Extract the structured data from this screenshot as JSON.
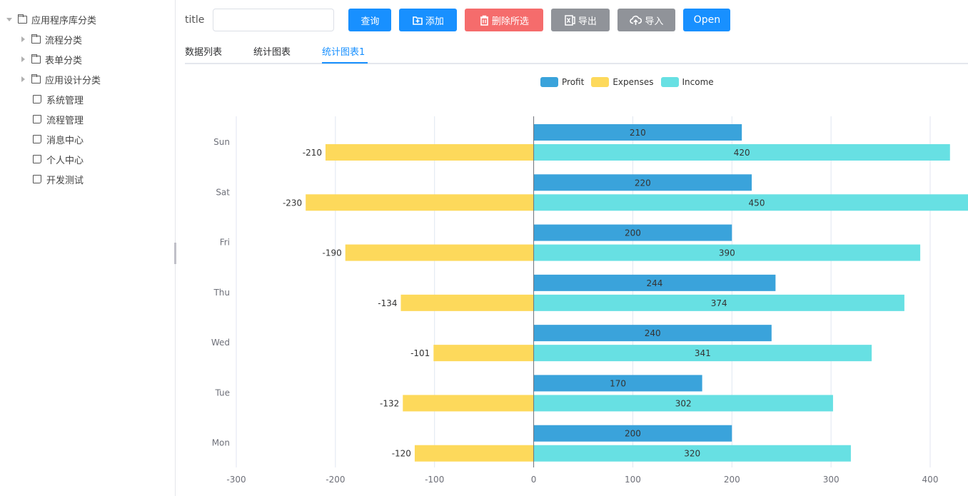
{
  "sidebar": {
    "items": [
      {
        "label": "应用程序库分类",
        "type": "folder",
        "expanded": true,
        "level": 0
      },
      {
        "label": "流程分类",
        "type": "folder",
        "expanded": false,
        "level": 1
      },
      {
        "label": "表单分类",
        "type": "folder",
        "expanded": false,
        "level": 1
      },
      {
        "label": "应用设计分类",
        "type": "folder",
        "expanded": false,
        "level": 1
      },
      {
        "label": "系统管理",
        "type": "file",
        "level": 1
      },
      {
        "label": "流程管理",
        "type": "file",
        "level": 1
      },
      {
        "label": "消息中心",
        "type": "file",
        "level": 1
      },
      {
        "label": "个人中心",
        "type": "file",
        "level": 1
      },
      {
        "label": "开发测试",
        "type": "file",
        "level": 1
      }
    ]
  },
  "toolbar": {
    "title_label": "title",
    "title_value": "",
    "title_placeholder": "",
    "query_label": "查询",
    "add_label": "添加",
    "delete_label": "删除所选",
    "export_label": "导出",
    "import_label": "导入",
    "open_label": "Open"
  },
  "tabs": [
    {
      "label": "数据列表",
      "active": false
    },
    {
      "label": "统计图表",
      "active": false
    },
    {
      "label": "统计图表1",
      "active": true
    }
  ],
  "colors": {
    "primary": "#1890ff",
    "danger": "#f56c6c",
    "neutral": "#909399",
    "profit": "#3aa3db",
    "expenses": "#fdd95b",
    "income": "#67e0e3"
  },
  "chart_data": {
    "type": "bar",
    "orientation": "horizontal",
    "title": "",
    "xlabel": "",
    "ylabel": "",
    "categories": [
      "Mon",
      "Tue",
      "Wed",
      "Thu",
      "Fri",
      "Sat",
      "Sun"
    ],
    "series": [
      {
        "name": "Profit",
        "color": "#3aa3db",
        "values": [
          200,
          170,
          240,
          244,
          200,
          220,
          210
        ]
      },
      {
        "name": "Expenses",
        "color": "#fdd95b",
        "values": [
          -120,
          -132,
          -101,
          -134,
          -190,
          -230,
          -210
        ],
        "stack": "total"
      },
      {
        "name": "Income",
        "color": "#67e0e3",
        "values": [
          320,
          302,
          341,
          374,
          390,
          450,
          420
        ],
        "stack": "total"
      }
    ],
    "xlim": [
      -300,
      400
    ],
    "x_ticks": [
      "-300",
      "-200",
      "-100",
      "0",
      "100",
      "200",
      "300",
      "400"
    ],
    "grid": true,
    "legend_position": "top-center",
    "data_labels": true
  }
}
